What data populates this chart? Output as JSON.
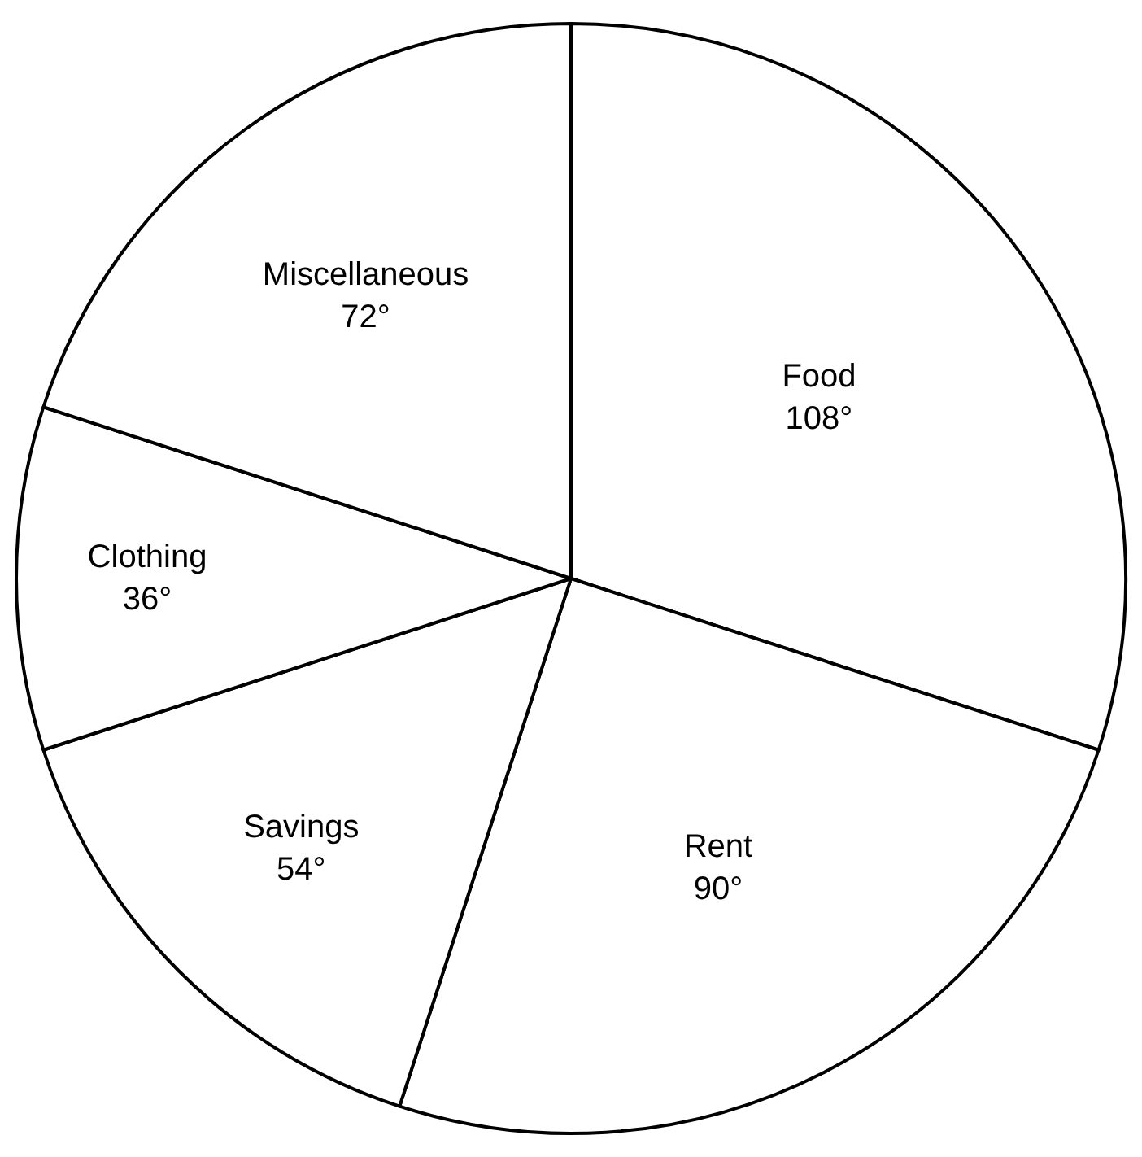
{
  "chart_data": {
    "type": "pie",
    "categories": [
      "Food",
      "Rent",
      "Savings",
      "Clothing",
      "Miscellaneous"
    ],
    "values": [
      108,
      90,
      54,
      36,
      72
    ],
    "value_labels": [
      "108°",
      "90°",
      "54°",
      "36°",
      "72°"
    ],
    "colors": [
      "#ffffff",
      "#ffffff",
      "#ffffff",
      "#ffffff",
      "#ffffff"
    ],
    "legend": false
  }
}
